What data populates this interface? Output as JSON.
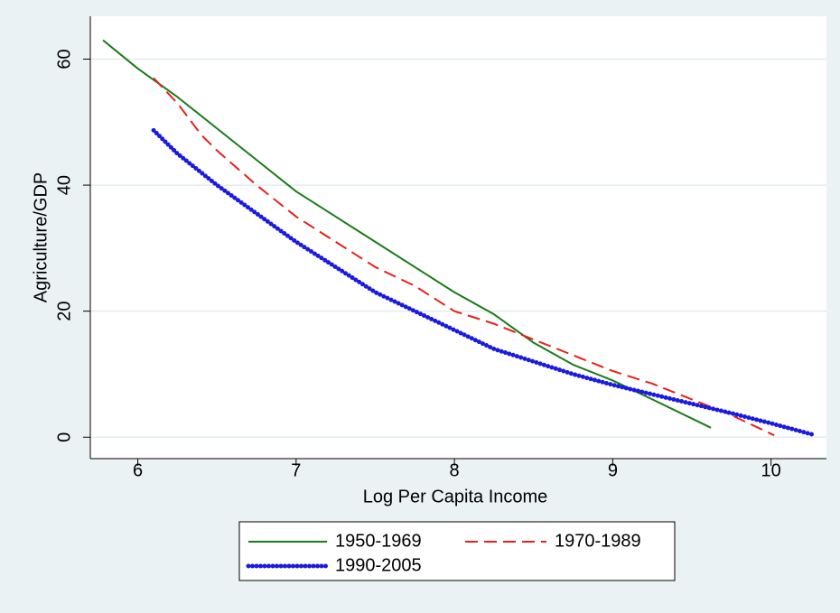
{
  "chart_data": {
    "type": "line",
    "x_label": "Log Per Capita Income",
    "y_label": "Agriculture/GDP",
    "xlim": [
      5.7,
      10.35
    ],
    "ylim": [
      -3.4,
      66.8
    ],
    "xticks": [
      6,
      7,
      8,
      9,
      10
    ],
    "yticks": [
      0,
      20,
      40,
      60
    ],
    "grid": true,
    "legend": "bottom",
    "series": [
      {
        "name": "1950-1969",
        "color": "#1a7a1a",
        "line_style": "solid",
        "x": [
          5.78,
          6,
          6.25,
          6.5,
          6.75,
          7,
          7.25,
          7.5,
          7.75,
          8,
          8.25,
          8.5,
          8.75,
          9,
          9.25,
          9.62
        ],
        "values": [
          63,
          58.5,
          54,
          49,
          44,
          39,
          35,
          31,
          27,
          23,
          19.5,
          15,
          11.5,
          9,
          6,
          1.5
        ]
      },
      {
        "name": "1970-1989",
        "color": "#e8201a",
        "line_style": "dashed",
        "x": [
          6.1,
          6.25,
          6.4,
          6.5,
          6.75,
          7,
          7.25,
          7.5,
          7.75,
          8,
          8.25,
          8.5,
          8.75,
          9,
          9.25,
          9.5,
          9.75,
          10.02
        ],
        "values": [
          57,
          53,
          48,
          45.5,
          40,
          35,
          31,
          27,
          24,
          20,
          18,
          15.5,
          13,
          10.5,
          8.5,
          6,
          3.5,
          0.3
        ]
      },
      {
        "name": "1990-2005",
        "color": "#1a1ae0",
        "line_style": "dotted",
        "x": [
          6.1,
          6.25,
          6.5,
          6.75,
          7,
          7.25,
          7.5,
          7.75,
          8,
          8.25,
          8.5,
          8.75,
          9,
          9.25,
          9.5,
          9.75,
          10,
          10.28
        ],
        "values": [
          48.7,
          45,
          40,
          35.5,
          31,
          27,
          23,
          20,
          17,
          14,
          12,
          10,
          8.3,
          6.8,
          5.3,
          3.8,
          2.2,
          0.3
        ]
      }
    ]
  }
}
